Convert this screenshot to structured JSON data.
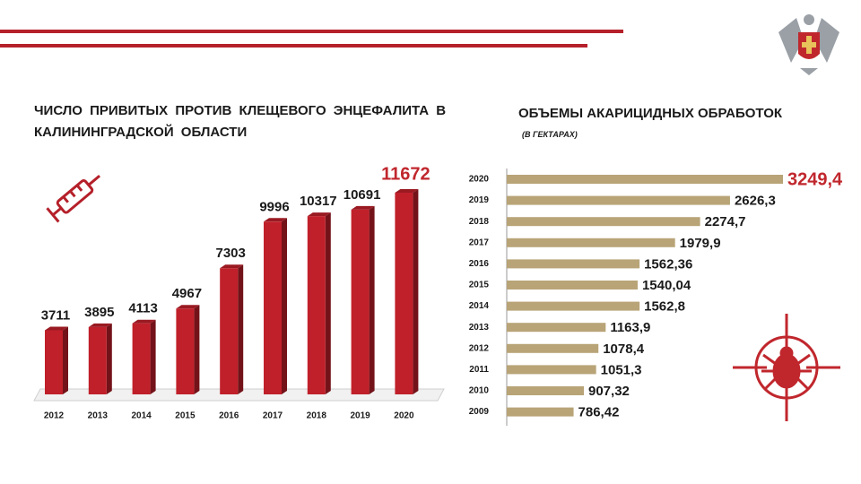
{
  "chart_data": [
    {
      "type": "bar3d",
      "title": "ЧИСЛО ПРИВИТЫХ ПРОТИВ КЛЕЩЕВОГО ЭНЦЕФАЛИТА В КАЛИНИНГРАДСКОЙ ОБЛАСТИ",
      "categories": [
        "2012",
        "2013",
        "2014",
        "2015",
        "2016",
        "2017",
        "2018",
        "2019",
        "2020"
      ],
      "values": [
        3711,
        3895,
        4113,
        4967,
        7303,
        9996,
        10317,
        10691,
        11672
      ],
      "color": "#c0202a",
      "highlight_color": "#c0272d"
    },
    {
      "type": "hbar",
      "title": "ОБЪЕМЫ АКАРИЦИДНЫХ ОБРАБОТОК",
      "subtitle": "(В ГЕКТАРАХ)",
      "categories": [
        "2020",
        "2019",
        "2018",
        "2017",
        "2016",
        "2015",
        "2014",
        "2013",
        "2012",
        "2011",
        "2010",
        "2009"
      ],
      "values": [
        3249.4,
        2626.3,
        2274.7,
        1979.9,
        1562.36,
        1540.04,
        1562.8,
        1163.9,
        1078.4,
        1051.3,
        907.32,
        786.42
      ],
      "value_labels": [
        "3249,4",
        "2626,3",
        "2274,7",
        "1979,9",
        "1562,36",
        "1540,04",
        "1562,8",
        "1163,9",
        "1078,4",
        "1051,3",
        "907,32",
        "786,42"
      ],
      "color": "#b8a477",
      "highlight_color": "#c0272d"
    }
  ]
}
